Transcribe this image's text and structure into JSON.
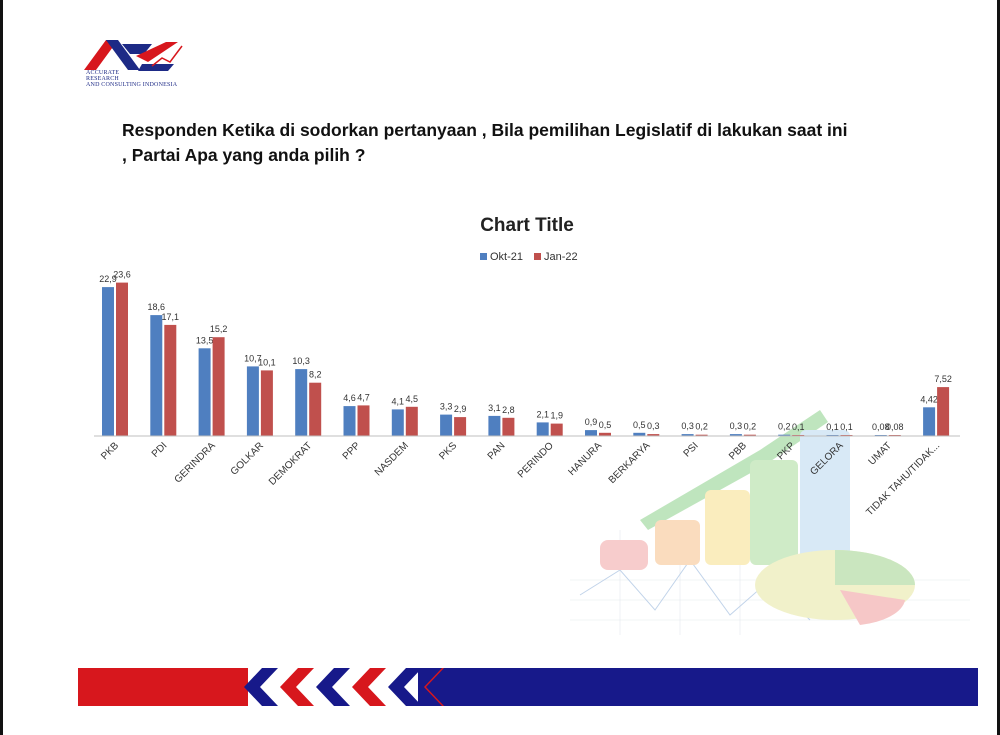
{
  "slide": {
    "logo_lines": [
      "ACCURATE",
      "RESEARCH",
      "AND CONSULTING INDONESIA"
    ],
    "question_lines": [
      "Responden Ketika di sodorkan pertanyaan , Bila pemilihan Legislatif di lakukan saat ini",
      ", Partai Apa yang anda pilih ?"
    ]
  },
  "colors": {
    "series_1": "#4f7fc0",
    "series_2": "#c0504d",
    "banner_red": "#d7171d",
    "banner_blue": "#17198a"
  },
  "chart_data": {
    "type": "bar",
    "title": "Chart Title",
    "xlabel": "",
    "ylabel": "",
    "ylim": [
      0,
      25
    ],
    "grid": false,
    "legend_position": "top-center",
    "categories": [
      "PKB",
      "PDI",
      "GERINDRA",
      "GOLKAR",
      "DEMOKRAT",
      "PPP",
      "NASDEM",
      "PKS",
      "PAN",
      "PERINDO",
      "HANURA",
      "BERKARYA",
      "PSI",
      "PBB",
      "PKP",
      "GELORA",
      "UMAT",
      "TIDAK TAHU/TIDAK..."
    ],
    "series": [
      {
        "name": "Okt-21",
        "values": [
          22.9,
          18.6,
          13.5,
          10.7,
          10.3,
          4.6,
          4.1,
          3.3,
          3.1,
          2.1,
          0.9,
          0.5,
          0.3,
          0.3,
          0.2,
          0.1,
          0.08,
          4.42
        ],
        "labels": [
          "22,9",
          "18,6",
          "13,5",
          "10,7",
          "10,3",
          "4,6",
          "4,1",
          "3,3",
          "3,1",
          "2,1",
          "0,9",
          "0,5",
          "0,3",
          "0,3",
          "0,2",
          "0,1",
          "0,08",
          "4,42"
        ]
      },
      {
        "name": "Jan-22",
        "values": [
          23.6,
          17.1,
          15.2,
          10.1,
          8.2,
          4.7,
          4.5,
          2.9,
          2.8,
          1.9,
          0.5,
          0.3,
          0.2,
          0.2,
          0.1,
          0.1,
          0.08,
          7.52
        ],
        "labels": [
          "23,6",
          "17,1",
          "15,2",
          "10,1",
          "8,2",
          "4,7",
          "4,5",
          "2,9",
          "2,8",
          "1,9",
          "0,5",
          "0,3",
          "0,2",
          "0,2",
          "0,1",
          "0,1",
          "0,08",
          "7,52"
        ]
      }
    ]
  }
}
